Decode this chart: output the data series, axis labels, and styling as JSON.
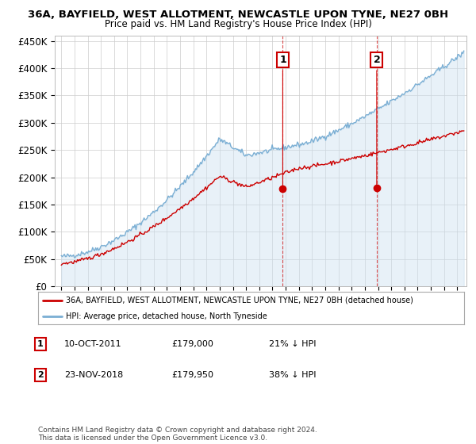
{
  "title": "36A, BAYFIELD, WEST ALLOTMENT, NEWCASTLE UPON TYNE, NE27 0BH",
  "subtitle": "Price paid vs. HM Land Registry's House Price Index (HPI)",
  "ylim": [
    0,
    460000
  ],
  "yticks": [
    0,
    50000,
    100000,
    150000,
    200000,
    250000,
    300000,
    350000,
    400000,
    450000
  ],
  "ytick_labels": [
    "£0",
    "£50K",
    "£100K",
    "£150K",
    "£200K",
    "£250K",
    "£300K",
    "£350K",
    "£400K",
    "£450K"
  ],
  "hpi_color": "#7bafd4",
  "hpi_fill_color": "#cce0f0",
  "price_color": "#cc0000",
  "legend_label_red": "36A, BAYFIELD, WEST ALLOTMENT, NEWCASTLE UPON TYNE, NE27 0BH (detached house)",
  "legend_label_blue": "HPI: Average price, detached house, North Tyneside",
  "annotation_1_date": "10-OCT-2011",
  "annotation_1_price": "£179,000",
  "annotation_1_pct": "21% ↓ HPI",
  "annotation_2_date": "23-NOV-2018",
  "annotation_2_price": "£179,950",
  "annotation_2_pct": "38% ↓ HPI",
  "footnote": "Contains HM Land Registry data © Crown copyright and database right 2024.\nThis data is licensed under the Open Government Licence v3.0.",
  "bg_color": "#ffffff",
  "grid_color": "#cccccc"
}
